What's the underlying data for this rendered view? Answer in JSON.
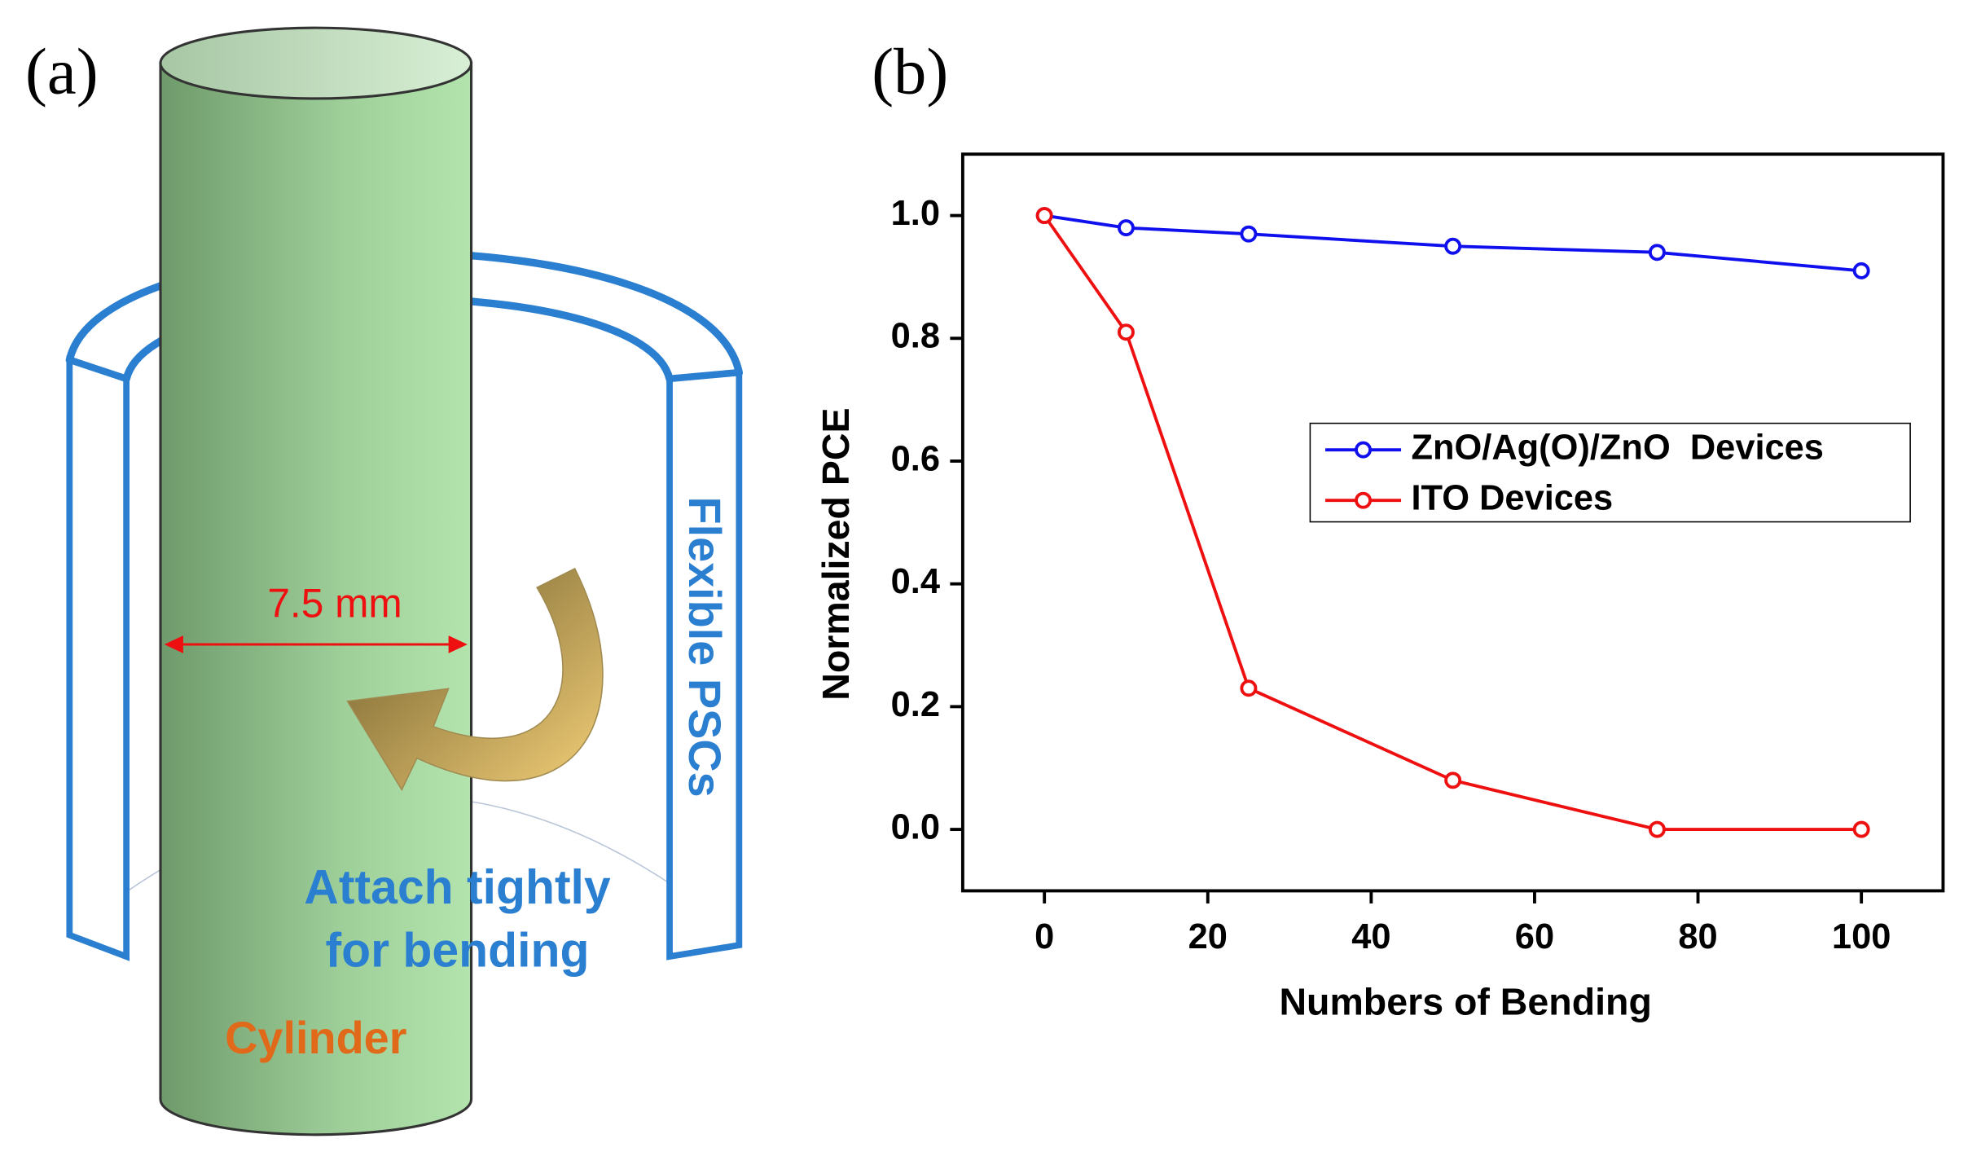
{
  "panel_labels": [
    "(a)",
    "(b)"
  ],
  "diagram": {
    "width_label": "7.5 mm",
    "device_label": "Flexible PSCs",
    "action_label": [
      "Attach tightly",
      "for bending"
    ],
    "cylinder_label": "Cylinder"
  },
  "chart_data": {
    "type": "line",
    "x_label": "Numbers of Bending",
    "y_label": "Normalized PCE",
    "x": [
      0,
      10,
      25,
      50,
      75,
      100
    ],
    "series": [
      {
        "name": "ZnO/Ag(O)/ZnO  Devices",
        "color": "#1010ee",
        "values": [
          1.0,
          0.98,
          0.97,
          0.95,
          0.94,
          0.91
        ]
      },
      {
        "name": "ITO Devices",
        "color": "#ee1010",
        "values": [
          1.0,
          0.81,
          0.23,
          0.08,
          0.0,
          0.0
        ]
      }
    ],
    "xlim": [
      -10,
      110
    ],
    "xticks": [
      0,
      20,
      40,
      60,
      80,
      100
    ],
    "ylim": [
      -0.1,
      1.1
    ],
    "yticks": [
      {
        "value": 0,
        "label": "0.0"
      },
      0.2,
      0.4,
      0.6,
      0.8,
      {
        "value": 1,
        "label": "1.0"
      }
    ],
    "legend": "right",
    "grid": false
  }
}
